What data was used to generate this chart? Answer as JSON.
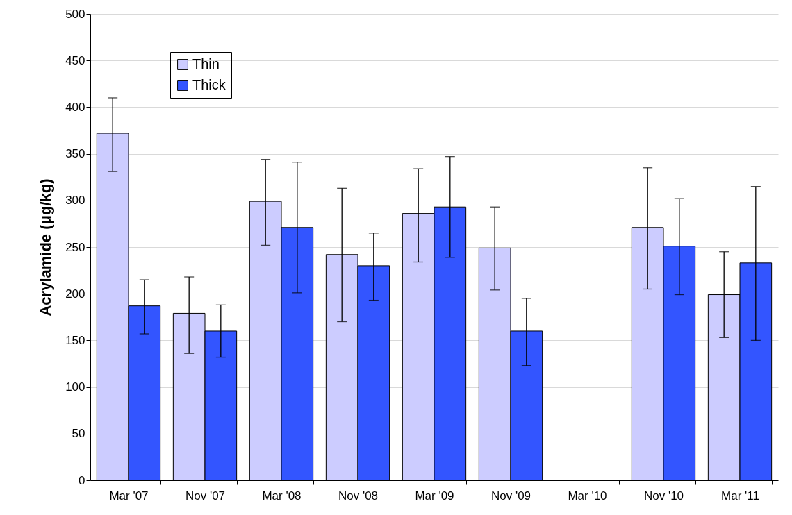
{
  "chart_data": {
    "type": "bar",
    "ylabel": "Acrylamide (μg/kg)",
    "categories": [
      "Mar '07",
      "Nov '07",
      "Mar '08",
      "Nov '08",
      "Mar '09",
      "Nov '09",
      "Mar '10",
      "Nov '10",
      "Mar '11"
    ],
    "series": [
      {
        "name": "Thin",
        "color": "#ccccff",
        "values": [
          372,
          179,
          299,
          242,
          286,
          249,
          null,
          271,
          199
        ],
        "errors": [
          [
            331,
            410
          ],
          [
            136,
            218
          ],
          [
            252,
            344
          ],
          [
            170,
            313
          ],
          [
            234,
            334
          ],
          [
            204,
            293
          ],
          null,
          [
            205,
            335
          ],
          [
            153,
            245
          ]
        ]
      },
      {
        "name": "Thick",
        "color": "#3355ff",
        "values": [
          187,
          160,
          271,
          230,
          293,
          160,
          null,
          251,
          233
        ],
        "errors": [
          [
            157,
            215
          ],
          [
            132,
            188
          ],
          [
            201,
            341
          ],
          [
            193,
            265
          ],
          [
            239,
            347
          ],
          [
            123,
            195
          ],
          null,
          [
            199,
            302
          ],
          [
            150,
            315
          ]
        ]
      }
    ],
    "ylim": [
      0,
      500
    ],
    "yticks": [
      0,
      50,
      100,
      150,
      200,
      250,
      300,
      350,
      400,
      450,
      500
    ],
    "grid": "y",
    "legend": "top left"
  }
}
